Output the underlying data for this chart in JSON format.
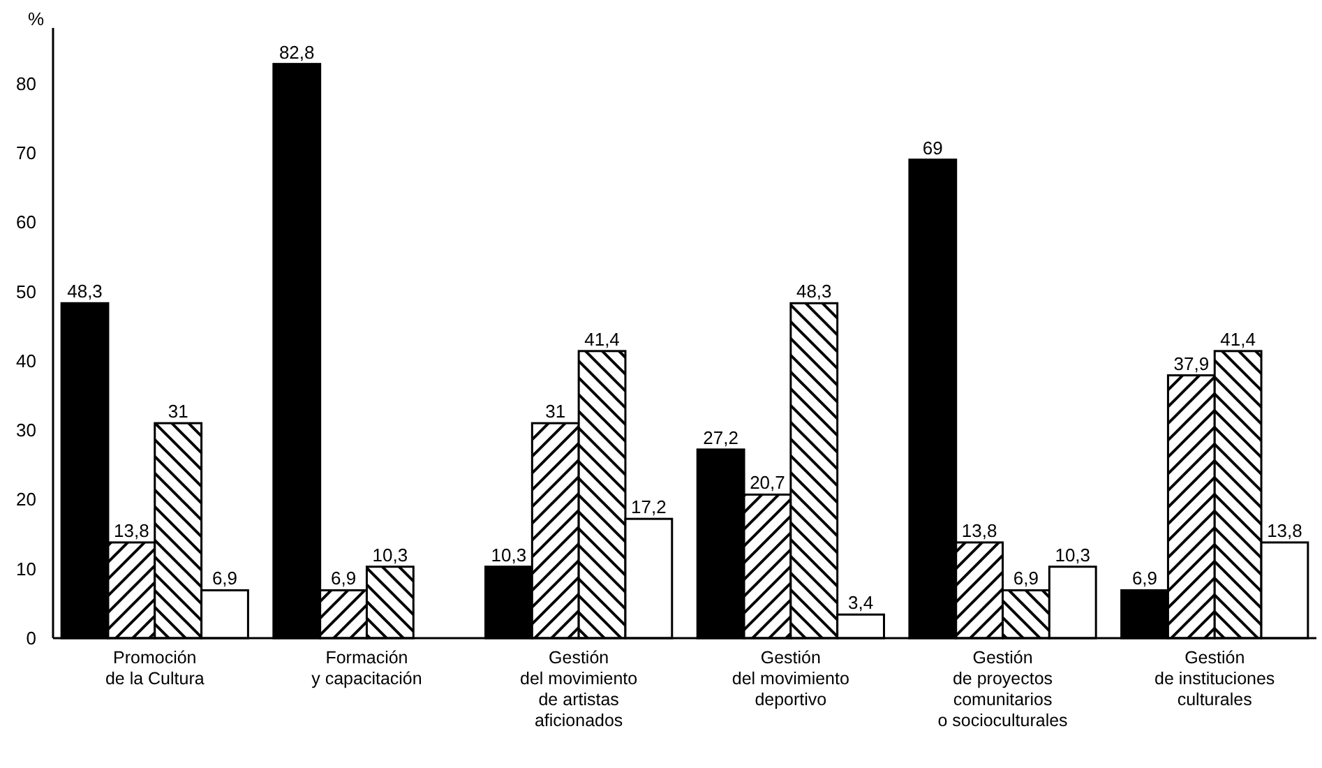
{
  "chart_data": {
    "type": "bar",
    "ylabel": "%",
    "categories": [
      "Promoción\nde la Cultura",
      "Formación\ny capacitación",
      "Gestión\ndel movimiento\nde artistas\naficionados",
      "Gestión\ndel movimiento\ndeportivo",
      "Gestión\nde proyectos\ncomunitarios\no socioculturales",
      "Gestión\nde instituciones\nculturales"
    ],
    "series": [
      {
        "color": "#000000",
        "values": [
          48.3,
          82.8,
          10.3,
          27.2,
          69,
          6.9
        ],
        "value_labels": [
          "48,3",
          "82,8",
          "10,3",
          "27,2",
          "69",
          "6,9"
        ]
      },
      {
        "color": "#000000",
        "values": [
          13.8,
          6.9,
          31,
          20.7,
          13.8,
          37.9
        ],
        "value_labels": [
          "13,8",
          "6,9",
          "31",
          "20,7",
          "13,8",
          "37,9"
        ]
      },
      {
        "color": "#000000",
        "values": [
          31,
          10.3,
          41.4,
          48.3,
          6.9,
          41.4
        ],
        "value_labels": [
          "31",
          "10,3",
          "41,4",
          "48,3",
          "6,9",
          "41,4"
        ]
      },
      {
        "color": "#ffffff",
        "values": [
          6.9,
          null,
          17.2,
          3.4,
          10.3,
          13.8
        ],
        "value_labels": [
          "6,9",
          null,
          "17,2",
          "3,4",
          "10,3",
          "13,8"
        ]
      }
    ],
    "ylim": [
      0,
      88
    ],
    "yticks": [
      0,
      10,
      20,
      30,
      40,
      50,
      60,
      70,
      80
    ],
    "grid": false
  }
}
